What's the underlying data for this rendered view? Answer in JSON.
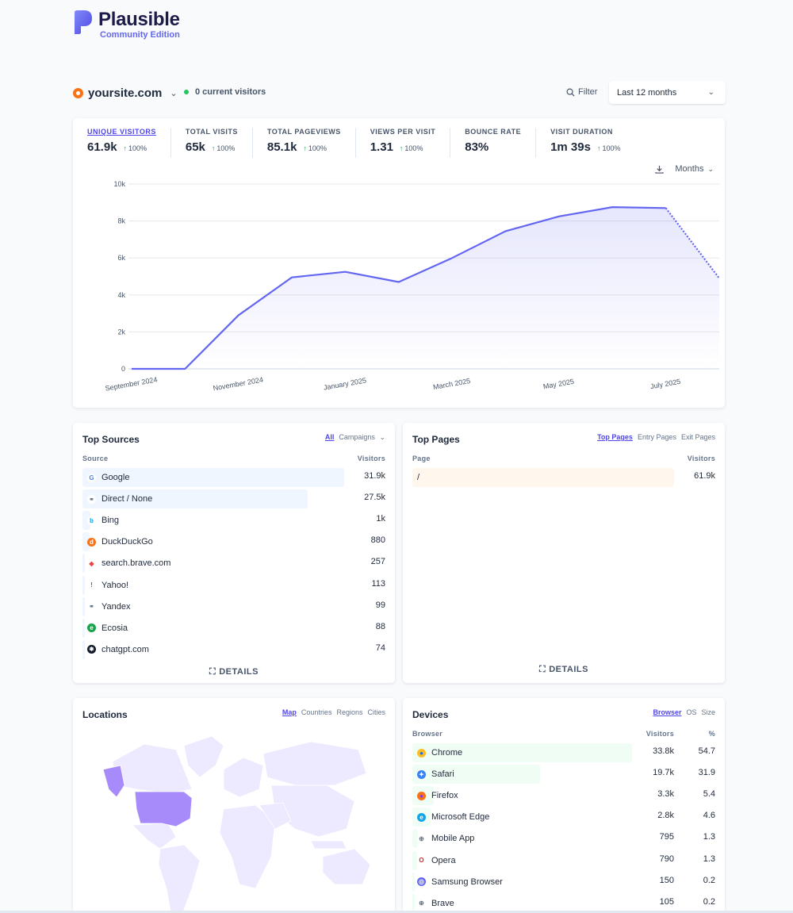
{
  "brand": {
    "name": "Plausible",
    "edition": "Community Edition"
  },
  "site": {
    "domain": "yoursite.com",
    "current_visitors": "0 current visitors"
  },
  "toolbar": {
    "filter_label": "Filter",
    "range_label": "Last 12 months"
  },
  "stats": [
    {
      "label": "Unique visitors",
      "value": "61.9k",
      "change": "100%",
      "active": true
    },
    {
      "label": "Total visits",
      "value": "65k",
      "change": "100%"
    },
    {
      "label": "Total pageviews",
      "value": "85.1k",
      "change": "100%"
    },
    {
      "label": "Views per visit",
      "value": "1.31",
      "change": "100%"
    },
    {
      "label": "Bounce rate",
      "value": "83%",
      "change": ""
    },
    {
      "label": "Visit duration",
      "value": "1m 39s",
      "change": "100%"
    }
  ],
  "interval": {
    "label": "Months"
  },
  "chart_data": {
    "type": "area",
    "series": [
      {
        "values": [
          0,
          0,
          2900,
          4950,
          5250,
          4700,
          6000,
          7450,
          8250,
          8750,
          8700,
          4900
        ]
      }
    ],
    "x_labels": [
      "September 2024",
      "November 2024",
      "January 2025",
      "March 2025",
      "May 2025",
      "July 2025"
    ],
    "y_ticks": [
      "0",
      "2k",
      "4k",
      "6k",
      "8k",
      "10k"
    ],
    "ylim": [
      0,
      10000
    ],
    "last_segment_dotted": true,
    "color": "#6366f1"
  },
  "sources": {
    "title": "Top Sources",
    "tabs": [
      "All",
      "Campaigns"
    ],
    "col_source": "Source",
    "col_visitors": "Visitors",
    "rows": [
      {
        "label": "Google",
        "value": "31.9k",
        "share": 1.0,
        "icon": "google-icon"
      },
      {
        "label": "Direct / None",
        "value": "27.5k",
        "share": 0.862,
        "icon": "link-icon"
      },
      {
        "label": "Bing",
        "value": "1k",
        "share": 0.031,
        "icon": "bing-icon"
      },
      {
        "label": "DuckDuckGo",
        "value": "880",
        "share": 0.028,
        "icon": "duckduckgo-icon"
      },
      {
        "label": "search.brave.com",
        "value": "257",
        "share": 0.008,
        "icon": "brave-icon"
      },
      {
        "label": "Yahoo!",
        "value": "113",
        "share": 0.004,
        "icon": "yahoo-icon"
      },
      {
        "label": "Yandex",
        "value": "99",
        "share": 0.003,
        "icon": "link-icon"
      },
      {
        "label": "Ecosia",
        "value": "88",
        "share": 0.003,
        "icon": "ecosia-icon"
      },
      {
        "label": "chatgpt.com",
        "value": "74",
        "share": 0.002,
        "icon": "chatgpt-icon"
      }
    ],
    "details": "DETAILS"
  },
  "pages": {
    "title": "Top Pages",
    "tabs": [
      "Top Pages",
      "Entry Pages",
      "Exit Pages"
    ],
    "col_page": "Page",
    "col_visitors": "Visitors",
    "rows": [
      {
        "label": "/",
        "value": "61.9k",
        "share": 1.0
      }
    ],
    "details": "DETAILS"
  },
  "locations": {
    "title": "Locations",
    "tabs": [
      "Map",
      "Countries",
      "Regions",
      "Cities"
    ]
  },
  "devices": {
    "title": "Devices",
    "tabs": [
      "Browser",
      "OS",
      "Size"
    ],
    "col_browser": "Browser",
    "col_visitors": "Visitors",
    "col_pct": "%",
    "rows": [
      {
        "label": "Chrome",
        "value": "33.8k",
        "pct": "54.7",
        "share": 1.0,
        "icon": "chrome-icon"
      },
      {
        "label": "Safari",
        "value": "19.7k",
        "pct": "31.9",
        "share": 0.583,
        "icon": "safari-icon"
      },
      {
        "label": "Firefox",
        "value": "3.3k",
        "pct": "5.4",
        "share": 0.098,
        "icon": "firefox-icon"
      },
      {
        "label": "Microsoft Edge",
        "value": "2.8k",
        "pct": "4.6",
        "share": 0.083,
        "icon": "edge-icon"
      },
      {
        "label": "Mobile App",
        "value": "795",
        "pct": "1.3",
        "share": 0.024,
        "icon": "globe-icon"
      },
      {
        "label": "Opera",
        "value": "790",
        "pct": "1.3",
        "share": 0.023,
        "icon": "opera-icon"
      },
      {
        "label": "Samsung Browser",
        "value": "150",
        "pct": "0.2",
        "share": 0.004,
        "icon": "samsung-icon"
      },
      {
        "label": "Brave",
        "value": "105",
        "pct": "0.2",
        "share": 0.003,
        "icon": "globe-icon"
      }
    ]
  }
}
